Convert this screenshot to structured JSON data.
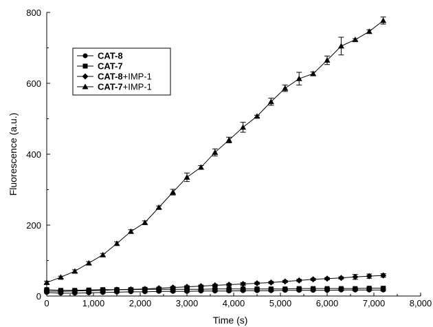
{
  "chart_data": {
    "type": "line",
    "xlabel": "Time (s)",
    "ylabel": "Fluorescence (a.u.)",
    "xlim": [
      0,
      8000
    ],
    "ylim": [
      0,
      800
    ],
    "x_ticks": [
      "0",
      "1,000",
      "2,000",
      "3,000",
      "4,000",
      "5,000",
      "6,000",
      "7,000",
      "8,000"
    ],
    "x_tick_values": [
      0,
      1000,
      2000,
      3000,
      4000,
      5000,
      6000,
      7000,
      8000
    ],
    "y_ticks": [
      "0",
      "200",
      "400",
      "600",
      "800"
    ],
    "y_tick_values": [
      0,
      200,
      400,
      600,
      800
    ],
    "grid": false,
    "legend_position": "upper-left",
    "x": [
      0,
      300,
      600,
      900,
      1200,
      1500,
      1800,
      2100,
      2400,
      2700,
      3000,
      3300,
      3600,
      3900,
      4200,
      4500,
      4800,
      5100,
      5400,
      5700,
      6000,
      6300,
      6600,
      6900,
      7200
    ],
    "series": [
      {
        "name": "CAT-8",
        "name_bold": "CAT-8",
        "name_rest": "",
        "marker": "circle",
        "values": [
          10,
          8,
          8,
          9,
          10,
          11,
          12,
          12,
          13,
          13,
          13,
          14,
          14,
          14,
          15,
          15,
          15,
          16,
          16,
          16,
          16,
          17,
          17,
          17,
          17
        ],
        "errors": [
          2,
          2,
          2,
          2,
          2,
          2,
          2,
          2,
          2,
          2,
          2,
          2,
          2,
          2,
          2,
          2,
          2,
          2,
          2,
          2,
          2,
          2,
          2,
          2,
          3
        ]
      },
      {
        "name": "CAT-7",
        "name_bold": "CAT-7",
        "name_rest": "",
        "marker": "square",
        "values": [
          18,
          16,
          16,
          17,
          18,
          18,
          18,
          19,
          19,
          19,
          19,
          19,
          20,
          20,
          20,
          20,
          20,
          20,
          21,
          21,
          21,
          21,
          21,
          22,
          22
        ],
        "errors": [
          2,
          2,
          2,
          2,
          2,
          2,
          2,
          2,
          2,
          2,
          2,
          2,
          2,
          2,
          2,
          2,
          2,
          2,
          2,
          2,
          2,
          2,
          2,
          2,
          3
        ]
      },
      {
        "name": "CAT-8+IMP-1",
        "name_bold": "CAT-8",
        "name_rest": "+IMP-1",
        "marker": "diamond",
        "values": [
          14,
          13,
          14,
          15,
          16,
          18,
          19,
          20,
          22,
          24,
          26,
          28,
          30,
          32,
          34,
          36,
          38,
          41,
          44,
          47,
          49,
          51,
          54,
          56,
          58
        ],
        "errors": [
          3,
          3,
          3,
          3,
          3,
          3,
          3,
          3,
          3,
          3,
          3,
          3,
          3,
          3,
          4,
          3,
          3,
          3,
          3,
          3,
          3,
          3,
          7,
          6,
          5
        ]
      },
      {
        "name": "CAT-7+IMP-1",
        "name_bold": "CAT-7",
        "name_rest": "+IMP-1",
        "marker": "triangle",
        "values": [
          38,
          53,
          70,
          93,
          116,
          148,
          182,
          207,
          250,
          293,
          335,
          363,
          405,
          440,
          476,
          507,
          548,
          586,
          613,
          627,
          665,
          705,
          723,
          746,
          777
        ],
        "errors": [
          4,
          3,
          4,
          4,
          4,
          5,
          5,
          5,
          4,
          8,
          12,
          5,
          10,
          8,
          14,
          3,
          10,
          9,
          18,
          5,
          12,
          25,
          3,
          5,
          10
        ]
      }
    ]
  }
}
